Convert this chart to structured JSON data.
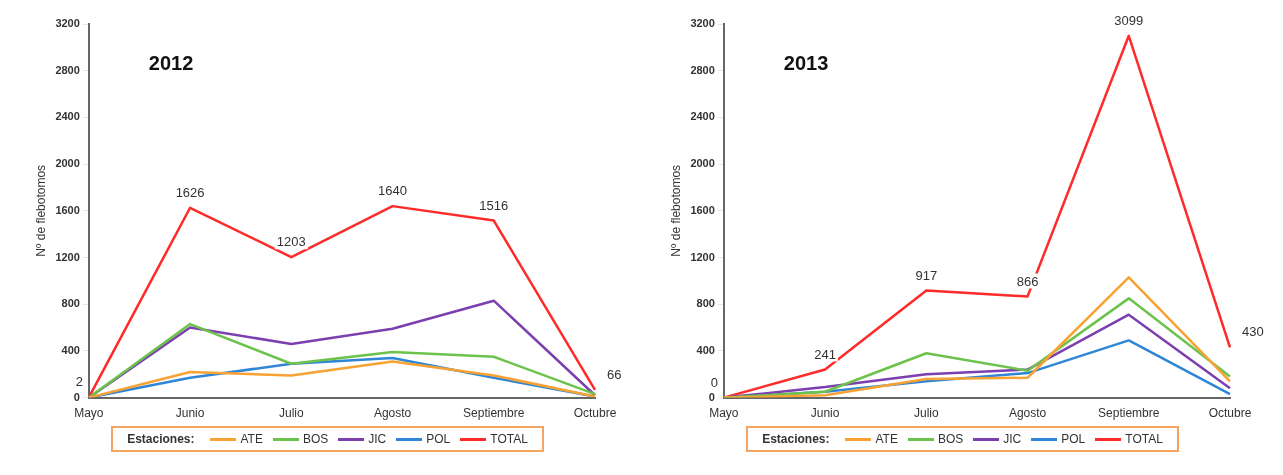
{
  "chart_data": [
    {
      "type": "line",
      "title": "2012",
      "ylabel": "Nº de flebotomos",
      "legend_title": "Estaciones:",
      "legend": "bottom",
      "grid": false,
      "marker": "none",
      "categories": [
        "Mayo",
        "Junio",
        "Julio",
        "Agosto",
        "Septiembre",
        "Octubre"
      ],
      "ylim": [
        0,
        3200
      ],
      "yticks": [
        0,
        400,
        800,
        1200,
        1600,
        2000,
        2400,
        2800,
        3200
      ],
      "series": [
        {
          "name": "ATE",
          "color": "#f7a233",
          "values": [
            0,
            220,
            190,
            310,
            190,
            10
          ]
        },
        {
          "name": "BOS",
          "color": "#6cc24a",
          "values": [
            0,
            630,
            290,
            390,
            350,
            30
          ]
        },
        {
          "name": "JIC",
          "color": "#7b3fb0",
          "values": [
            0,
            600,
            460,
            590,
            830,
            20
          ]
        },
        {
          "name": "POL",
          "color": "#2f86d6",
          "values": [
            0,
            170,
            290,
            340,
            170,
            10
          ]
        },
        {
          "name": "TOTAL",
          "color": "#ff2a2a",
          "values": [
            2,
            1626,
            1203,
            1640,
            1516,
            66
          ],
          "value_labels": [
            "2",
            "1626",
            "1203",
            "1640",
            "1516",
            "66"
          ]
        }
      ]
    },
    {
      "type": "line",
      "title": "2013",
      "ylabel": "Nº de flebotomos",
      "legend_title": "Estaciones:",
      "legend": "bottom",
      "grid": false,
      "marker": "none",
      "categories": [
        "Mayo",
        "Junio",
        "Julio",
        "Agosto",
        "Septiembre",
        "Octubre"
      ],
      "ylim": [
        0,
        3200
      ],
      "yticks": [
        0,
        400,
        800,
        1200,
        1600,
        2000,
        2400,
        2800,
        3200
      ],
      "series": [
        {
          "name": "ATE",
          "color": "#f7a233",
          "values": [
            0,
            20,
            160,
            170,
            1030,
            140
          ]
        },
        {
          "name": "BOS",
          "color": "#6cc24a",
          "values": [
            0,
            50,
            380,
            230,
            850,
            180
          ]
        },
        {
          "name": "JIC",
          "color": "#7b3fb0",
          "values": [
            0,
            90,
            200,
            240,
            710,
            80
          ]
        },
        {
          "name": "POL",
          "color": "#2f86d6",
          "values": [
            0,
            50,
            140,
            210,
            490,
            30
          ]
        },
        {
          "name": "TOTAL",
          "color": "#ff2a2a",
          "values": [
            0,
            241,
            917,
            866,
            3099,
            430
          ],
          "value_labels": [
            "0",
            "241",
            "917",
            "866",
            "3099",
            "430"
          ]
        }
      ]
    }
  ]
}
